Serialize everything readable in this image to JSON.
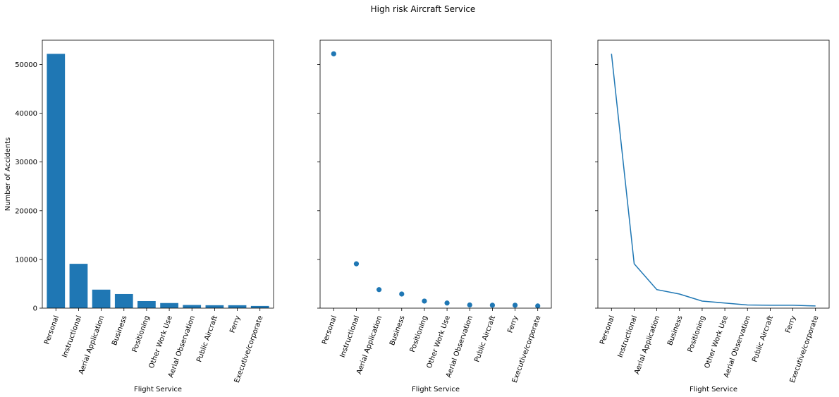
{
  "suptitle": "High risk Aircraft Service",
  "colors": {
    "series": "#1f77b4",
    "axes": "#000000",
    "background": "#ffffff"
  },
  "chart_data": [
    {
      "type": "bar",
      "xlabel": "Flight Service",
      "ylabel": "Number of Accidents",
      "ylim": [
        0,
        55000
      ],
      "yticks": [
        0,
        10000,
        20000,
        30000,
        40000,
        50000
      ],
      "grid": false,
      "categories": [
        "Personal",
        "Instructional",
        "Aerial Application",
        "Business",
        "Positioning",
        "Other Work Use",
        "Aerial Observation",
        "Public Aircraft",
        "Ferry",
        "Executive/corporate"
      ],
      "values": [
        52200,
        9100,
        3800,
        2900,
        1450,
        1050,
        650,
        600,
        600,
        450
      ]
    },
    {
      "type": "scatter",
      "xlabel": "Flight Service",
      "ylabel": "",
      "ylim": [
        0,
        55000
      ],
      "yticks": [
        0,
        10000,
        20000,
        30000,
        40000,
        50000
      ],
      "grid": false,
      "categories": [
        "Personal",
        "Instructional",
        "Aerial Application",
        "Business",
        "Positioning",
        "Other Work Use",
        "Aerial Observation",
        "Public Aircraft",
        "Ferry",
        "Executive/corporate"
      ],
      "values": [
        52200,
        9100,
        3800,
        2900,
        1450,
        1050,
        650,
        600,
        600,
        450
      ]
    },
    {
      "type": "line",
      "xlabel": "Flight Service",
      "ylabel": "",
      "ylim": [
        0,
        55000
      ],
      "yticks": [
        0,
        10000,
        20000,
        30000,
        40000,
        50000
      ],
      "grid": false,
      "categories": [
        "Personal",
        "Instructional",
        "Aerial Application",
        "Business",
        "Positioning",
        "Other Work Use",
        "Aerial Observation",
        "Public Aircraft",
        "Ferry",
        "Executive/corporate"
      ],
      "values": [
        52200,
        9100,
        3800,
        2900,
        1450,
        1050,
        650,
        600,
        600,
        450
      ]
    }
  ]
}
